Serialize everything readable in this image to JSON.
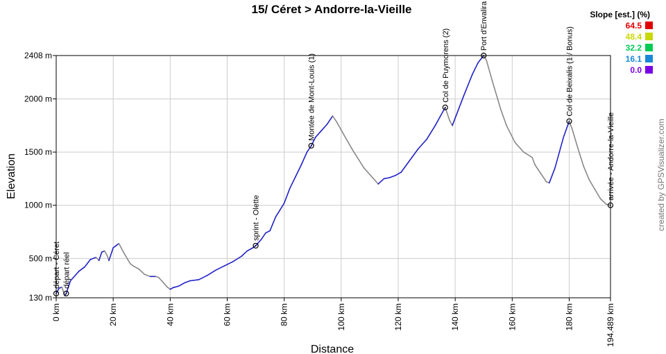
{
  "chart_data": {
    "type": "line",
    "title": "15/ Céret > Andorre-la-Vieille",
    "xlabel": "Distance",
    "ylabel": "Elevation",
    "xlim": [
      0,
      194.489
    ],
    "ylim": [
      130,
      2408
    ],
    "x_ticks": [
      {
        "v": 0,
        "label": "0 km"
      },
      {
        "v": 20,
        "label": "20 km"
      },
      {
        "v": 40,
        "label": "40 km"
      },
      {
        "v": 60,
        "label": "60 km"
      },
      {
        "v": 80,
        "label": "80 km"
      },
      {
        "v": 100,
        "label": "100 km"
      },
      {
        "v": 120,
        "label": "120 km"
      },
      {
        "v": 140,
        "label": "140 km"
      },
      {
        "v": 160,
        "label": "160 km"
      },
      {
        "v": 180,
        "label": "180 km"
      },
      {
        "v": 194.489,
        "label": "194.489 km"
      }
    ],
    "y_ticks": [
      {
        "v": 130,
        "label": "130 m"
      },
      {
        "v": 500,
        "label": "500 m"
      },
      {
        "v": 1000,
        "label": "1000 m"
      },
      {
        "v": 1500,
        "label": "1500 m"
      },
      {
        "v": 2000,
        "label": "2000 m"
      },
      {
        "v": 2408,
        "label": "2408 m"
      }
    ],
    "grid": true,
    "series": [
      {
        "x": [
          0,
          1,
          2,
          3,
          3.5,
          5,
          8,
          10,
          12,
          14,
          15,
          16,
          17,
          18,
          18.5,
          20,
          21,
          22,
          24,
          26,
          27,
          29,
          31,
          33,
          35,
          36,
          38,
          39,
          40,
          41,
          43,
          45,
          47,
          50,
          53,
          56,
          59,
          62,
          65,
          67,
          69,
          70,
          72,
          73.5,
          75,
          77,
          80,
          82,
          84,
          86,
          88,
          89.5,
          91,
          93,
          95,
          97,
          98.5,
          101,
          104,
          108,
          112,
          113,
          115,
          117,
          119,
          121,
          124,
          127,
          130,
          133,
          136.5,
          138,
          139,
          140,
          143,
          146,
          148,
          150,
          151,
          153,
          156,
          158,
          161,
          164,
          167,
          168,
          170,
          172,
          173,
          175,
          178,
          180,
          181,
          183,
          185,
          187,
          189,
          191,
          193,
          194.489
        ],
        "y": [
          170,
          220,
          230,
          150,
          170,
          290,
          380,
          420,
          490,
          510,
          480,
          560,
          570,
          520,
          480,
          600,
          620,
          640,
          540,
          450,
          430,
          400,
          350,
          330,
          330,
          320,
          260,
          230,
          210,
          225,
          240,
          270,
          290,
          300,
          340,
          390,
          430,
          470,
          520,
          570,
          600,
          620,
          680,
          740,
          760,
          890,
          1020,
          1160,
          1270,
          1380,
          1500,
          1560,
          1640,
          1700,
          1760,
          1840,
          1780,
          1660,
          1520,
          1350,
          1230,
          1200,
          1250,
          1260,
          1280,
          1310,
          1420,
          1530,
          1620,
          1750,
          1920,
          1800,
          1750,
          1820,
          2030,
          2230,
          2340,
          2408,
          2360,
          2170,
          1900,
          1750,
          1590,
          1500,
          1450,
          1380,
          1300,
          1220,
          1210,
          1350,
          1640,
          1790,
          1720,
          1540,
          1370,
          1240,
          1150,
          1060,
          1010,
          1000
        ]
      }
    ],
    "waypoints": [
      {
        "x": 0,
        "y": 170,
        "label": "départ - Céret"
      },
      {
        "x": 3.5,
        "y": 170,
        "label": "départ réel"
      },
      {
        "x": 70,
        "y": 620,
        "label": "sprint - Olette"
      },
      {
        "x": 89.5,
        "y": 1560,
        "label": "Montée de Mont-Louis (1)"
      },
      {
        "x": 136.5,
        "y": 1920,
        "label": "Col de Puymorens (2)"
      },
      {
        "x": 150,
        "y": 2408,
        "label": "Port d'Envalira"
      },
      {
        "x": 180,
        "y": 1790,
        "label": "Col de Beixalis (1 / Bonus)"
      },
      {
        "x": 194.489,
        "y": 1000,
        "label": "arrivée - Andorre-la-Vieille"
      }
    ],
    "legend": {
      "title": "Slope [est.] (%)",
      "position": "top-right",
      "entries": [
        {
          "value": "64.5",
          "color": "#e00000"
        },
        {
          "value": "48.4",
          "color": "#c8d800"
        },
        {
          "value": "32.2",
          "color": "#00cc55"
        },
        {
          "value": "16.1",
          "color": "#1888d8"
        },
        {
          "value": "0.0",
          "color": "#7a00e6"
        }
      ]
    },
    "colors": {
      "line_main": "#2020c8",
      "line_descent": "#888888"
    }
  },
  "credit": "created by GPSVisualizer.com"
}
